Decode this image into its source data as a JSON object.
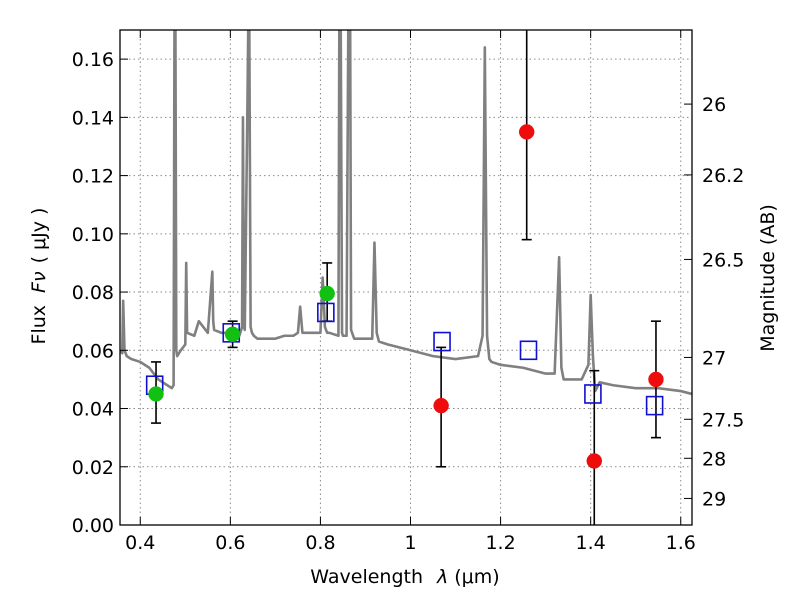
{
  "chart_data": {
    "type": "scatter",
    "title": "",
    "xlabel_text": "Wavelength",
    "xlabel_symbol": "λ",
    "xlabel_unit": "(μm)",
    "ylabel_text": "Flux",
    "ylabel_symbol": "Fν",
    "ylabel_unit": "( μJy )",
    "y2label": "Magnitude (AB)",
    "xlim": [
      0.355,
      1.625
    ],
    "ylim": [
      0.0,
      0.17
    ],
    "grid": true,
    "x_ticks": [
      0.4,
      0.6,
      0.8,
      1.0,
      1.2,
      1.4,
      1.6
    ],
    "x_tick_labels": [
      "0.4",
      "0.6",
      "0.8",
      "1",
      "1.2",
      "1.4",
      "1.6"
    ],
    "y_ticks": [
      0.0,
      0.02,
      0.04,
      0.06,
      0.08,
      0.1,
      0.12,
      0.14,
      0.16
    ],
    "y_tick_labels": [
      "0.00",
      "0.02",
      "0.04",
      "0.06",
      "0.08",
      "0.10",
      "0.12",
      "0.14",
      "0.16"
    ],
    "y2_ticks": [
      {
        "label": "26",
        "mag": 26.0
      },
      {
        "label": "26.2",
        "mag": 26.2
      },
      {
        "label": "26.5",
        "mag": 26.5
      },
      {
        "label": "27",
        "mag": 27.0
      },
      {
        "label": "27.5",
        "mag": 27.5
      },
      {
        "label": "28",
        "mag": 28.0
      },
      {
        "label": "29",
        "mag": 29.0
      }
    ],
    "colors": {
      "model": "#808080",
      "green": "#12c012",
      "red": "#ee0c0c",
      "blue": "#1010d0",
      "grid": "#8a8a8a"
    },
    "series": [
      {
        "kind": "model_sed",
        "x": [
          0.355,
          0.36,
          0.362,
          0.365,
          0.37,
          0.38,
          0.4,
          0.42,
          0.44,
          0.46,
          0.47,
          0.474,
          0.476,
          0.478,
          0.48,
          0.482,
          0.49,
          0.5,
          0.502,
          0.504,
          0.52,
          0.53,
          0.55,
          0.56,
          0.562,
          0.564,
          0.58,
          0.6,
          0.62,
          0.626,
          0.628,
          0.63,
          0.632,
          0.638,
          0.64,
          0.642,
          0.645,
          0.648,
          0.652,
          0.66,
          0.68,
          0.7,
          0.72,
          0.74,
          0.75,
          0.755,
          0.76,
          0.77,
          0.8,
          0.805,
          0.81,
          0.815,
          0.82,
          0.84,
          0.842,
          0.845,
          0.848,
          0.85,
          0.858,
          0.862,
          0.866,
          0.868,
          0.875,
          0.9,
          0.915,
          0.92,
          0.925,
          0.93,
          0.95,
          1.0,
          1.05,
          1.1,
          1.15,
          1.16,
          1.165,
          1.17,
          1.175,
          1.18,
          1.2,
          1.25,
          1.3,
          1.32,
          1.33,
          1.335,
          1.34,
          1.35,
          1.38,
          1.395,
          1.4,
          1.405,
          1.41,
          1.42,
          1.45,
          1.5,
          1.55,
          1.6,
          1.625
        ],
        "y": [
          0.06,
          0.059,
          0.077,
          0.06,
          0.058,
          0.057,
          0.056,
          0.054,
          0.05,
          0.048,
          0.047,
          0.048,
          0.175,
          0.175,
          0.06,
          0.058,
          0.06,
          0.062,
          0.09,
          0.066,
          0.065,
          0.07,
          0.066,
          0.087,
          0.07,
          0.067,
          0.066,
          0.066,
          0.065,
          0.068,
          0.14,
          0.068,
          0.067,
          0.145,
          0.175,
          0.175,
          0.068,
          0.066,
          0.065,
          0.064,
          0.064,
          0.064,
          0.065,
          0.065,
          0.066,
          0.075,
          0.066,
          0.066,
          0.066,
          0.085,
          0.068,
          0.066,
          0.066,
          0.065,
          0.175,
          0.175,
          0.066,
          0.065,
          0.065,
          0.175,
          0.175,
          0.067,
          0.064,
          0.064,
          0.064,
          0.097,
          0.066,
          0.063,
          0.062,
          0.06,
          0.058,
          0.057,
          0.058,
          0.065,
          0.164,
          0.065,
          0.057,
          0.056,
          0.055,
          0.054,
          0.052,
          0.052,
          0.092,
          0.054,
          0.05,
          0.05,
          0.05,
          0.055,
          0.079,
          0.058,
          0.046,
          0.049,
          0.048,
          0.047,
          0.047,
          0.046,
          0.045
        ]
      },
      {
        "kind": "green_points",
        "points": [
          {
            "x": 0.435,
            "y": 0.045,
            "yerr": [
              0.035,
              0.056
            ]
          },
          {
            "x": 0.605,
            "y": 0.0655,
            "yerr": [
              0.061,
              0.07
            ]
          },
          {
            "x": 0.815,
            "y": 0.0795,
            "yerr": [
              0.07,
              0.09
            ]
          }
        ]
      },
      {
        "kind": "red_points",
        "points": [
          {
            "x": 1.068,
            "y": 0.041,
            "yerr": [
              0.02,
              0.061
            ]
          },
          {
            "x": 1.258,
            "y": 0.135,
            "yerr": [
              0.098,
              0.172
            ]
          },
          {
            "x": 1.408,
            "y": 0.022,
            "yerr": [
              0.0,
              0.053
            ]
          },
          {
            "x": 1.545,
            "y": 0.05,
            "yerr": [
              0.03,
              0.07
            ]
          }
        ]
      },
      {
        "kind": "blue_open_squares",
        "points": [
          {
            "x": 0.432,
            "y": 0.048
          },
          {
            "x": 0.602,
            "y": 0.066
          },
          {
            "x": 0.812,
            "y": 0.073
          },
          {
            "x": 1.07,
            "y": 0.063
          },
          {
            "x": 1.262,
            "y": 0.06
          },
          {
            "x": 1.405,
            "y": 0.045
          },
          {
            "x": 1.542,
            "y": 0.041
          }
        ]
      }
    ]
  }
}
